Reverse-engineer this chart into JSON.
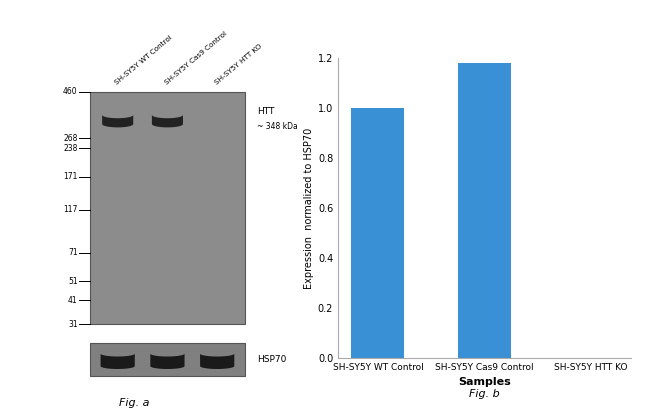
{
  "wb_bg_color": "#8c8c8c",
  "wb_band_color": "#222222",
  "wb_hsp_bg_color": "#808080",
  "wb_hsp_band_color": "#1a1a1a",
  "mw_markers": [
    460,
    268,
    238,
    171,
    117,
    71,
    51,
    41,
    31
  ],
  "htt_label": "HTT",
  "htt_kda": "~ 348 kDa",
  "hsp_label": "HSP70",
  "lane_labels": [
    "SH-SY5Y WT Control",
    "SH-SY5Y Cas9 Control",
    "SH-SY5Y HTT KO"
  ],
  "bar_categories": [
    "SH-SY5Y WT Control",
    "SH-SY5Y Cas9 Control",
    "SH-SY5Y HTT KO"
  ],
  "bar_values": [
    1.0,
    1.18,
    0.0
  ],
  "bar_color": "#3a90d4",
  "bar_ylabel": "Expression  normalized to HSP70",
  "bar_xlabel": "Samples",
  "bar_ylim": [
    0,
    1.2
  ],
  "bar_yticks": [
    0,
    0.2,
    0.4,
    0.6,
    0.8,
    1.0,
    1.2
  ],
  "fig_a_label": "Fig. a",
  "fig_b_label": "Fig. b",
  "background_color": "#ffffff"
}
